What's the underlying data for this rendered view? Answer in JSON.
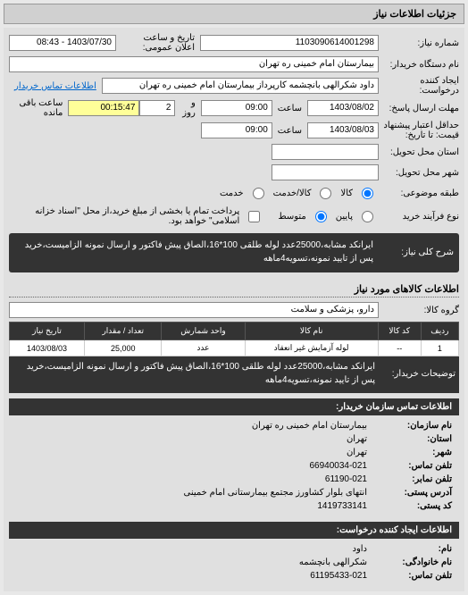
{
  "header": {
    "title": "جزئیات اطلاعات نیاز"
  },
  "form": {
    "need_no_label": "شماره نیاز:",
    "need_no": "1103090614001298",
    "datetime_label": "تاریخ و ساعت اعلان عمومی:",
    "datetime": "1403/07/30 - 08:43",
    "buyer_org_label": "نام دستگاه خریدار:",
    "buyer_org": "بیمارستان امام خمینی ره تهران",
    "requester_label": "ایجاد کننده درخواست:",
    "requester": "داود شکرالهی بانچشمه کارپرداز بیمارستان امام خمینی ره تهران",
    "contact_link": "اطلاعات تماس خریدار",
    "deadline_label": "مهلت ارسال پاسخ:",
    "deadline_from_label": "تا تاریخ:",
    "deadline_date": "1403/08/02",
    "time_label": "ساعت",
    "deadline_time": "09:00",
    "days_label": "و روز",
    "days": "2",
    "remaining": "00:15:47",
    "remaining_label": "ساعت باقی مانده",
    "validity_label": "حداقل اعتبار پیشنهاد قیمت: تا تاریخ:",
    "validity_date": "1403/08/03",
    "validity_time": "09:00",
    "province_label": "استان محل تحویل:",
    "city_label": "شهر محل تحویل:",
    "commodity_type_label": "طبقه موضوعی:",
    "type_goods": "کالا",
    "type_service": "کالا/خدمت",
    "type_mixed": "خدمت",
    "process_label": "نوع فرآیند خرید",
    "proc_low": "پایین",
    "proc_mid": "متوسط",
    "proc_note": "پرداخت تمام یا بخشی از مبلغ خرید،از محل \"اسناد خزانه اسلامی\" خواهد بود.",
    "desc_label": "شرح کلی نیاز:",
    "desc": "ایرانکد مشابه،25000عدد لوله طلقی 100*16،الصاق پیش فاکتور و ارسال نمونه الزامیست،خرید پس از تایید نمونه،تسویه4ماهه"
  },
  "goods": {
    "section_title": "اطلاعات کالاهای مورد نیاز",
    "group_label": "گروه کالا:",
    "group": "دارو، پزشکی و سلامت",
    "cols": {
      "row": "ردیف",
      "code": "کد کالا",
      "name": "نام کالا",
      "unit": "واحد شمارش",
      "qty": "تعداد / مقدار",
      "date": "تاریخ نیاز"
    },
    "rows": [
      {
        "idx": "1",
        "code": "--",
        "name": "لوله آزمایش غیر انعقاد",
        "unit": "عدد",
        "qty": "25,000",
        "date": "1403/08/03"
      }
    ],
    "notes_label": "توضیحات خریدار:",
    "notes": "ایرانکد مشابه،25000عدد لوله طلقی 100*16،الصاق پیش فاکتور و ارسال نمونه الزامیست،خرید پس از تایید نمونه،تسویه4ماهه"
  },
  "contact": {
    "header": "اطلاعات تماس سازمان خریدار:",
    "org_name_label": "نام سازمان:",
    "org_name": "بیمارستان امام خمینی ره تهران",
    "province_label": "استان:",
    "province": "تهران",
    "city_label": "شهر:",
    "city": "تهران",
    "phone_label": "تلفن تماس:",
    "phone": "66940034-021",
    "fax_label": "تلفن نمابر:",
    "fax": "61190-021",
    "address_label": "آدرس پستی:",
    "address": "انتهای بلوار کشاورز مجتمع بیمارستانی امام خمینی",
    "postal_label": "کد پستی:",
    "postal": "1419733141",
    "creator_header": "اطلاعات ایجاد کننده درخواست:",
    "name_label": "نام:",
    "name": "داود",
    "family_label": "نام خانوادگی:",
    "family": "شکرالهی بانچشمه",
    "creator_phone_label": "تلفن تماس:",
    "creator_phone": "61195433-021"
  },
  "colors": {
    "dark": "#333333",
    "bg": "#e8e8e8",
    "yellow": "#ffff99"
  }
}
